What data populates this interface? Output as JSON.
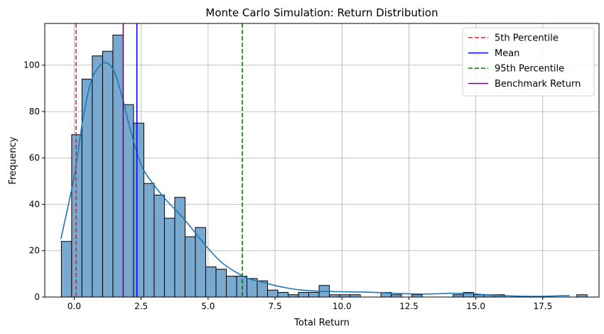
{
  "chart_data": {
    "type": "bar",
    "title": "Monte Carlo Simulation: Return Distribution",
    "xlabel": "Total Return",
    "ylabel": "Frequency",
    "xlim": [
      -1.1,
      19.6
    ],
    "ylim": [
      0,
      118
    ],
    "xticks": [
      0.0,
      2.5,
      5.0,
      7.5,
      10.0,
      12.5,
      15.0,
      17.5
    ],
    "xtick_labels": [
      "0.0",
      "2.5",
      "5.0",
      "7.5",
      "10.0",
      "12.5",
      "15.0",
      "17.5"
    ],
    "yticks": [
      0,
      20,
      40,
      60,
      80,
      100
    ],
    "ytick_labels": [
      "0",
      "20",
      "40",
      "60",
      "80",
      "100"
    ],
    "grid": true,
    "legend_position": "top-right",
    "bins": {
      "start": -0.48,
      "width": 0.385,
      "counts": [
        24,
        70,
        94,
        104,
        106,
        113,
        83,
        75,
        49,
        44,
        34,
        43,
        26,
        30,
        13,
        12,
        9,
        9,
        8,
        7,
        3,
        2,
        1,
        2,
        2,
        5,
        1,
        1,
        1,
        0,
        0,
        2,
        1,
        0,
        1,
        0,
        0,
        0,
        1,
        2,
        1,
        1,
        1,
        0,
        0,
        0,
        0,
        0,
        0,
        0,
        1
      ]
    },
    "kde": {
      "x": [
        -0.5,
        0,
        0.3,
        0.6,
        0.9,
        1.2,
        1.5,
        1.8,
        2.1,
        2.5,
        3,
        3.5,
        4,
        4.5,
        5,
        5.5,
        6,
        6.5,
        7,
        7.5,
        8,
        8.5,
        9,
        9.5,
        10,
        10.5,
        11,
        11.5,
        12,
        12.5,
        13,
        13.5,
        14,
        14.5,
        15,
        15.5,
        16,
        16.5,
        17,
        17.5,
        18,
        18.5
      ],
      "y": [
        25,
        52,
        75,
        92,
        99,
        101,
        97,
        86,
        72,
        57,
        48,
        41,
        35,
        28,
        21,
        15,
        11,
        8,
        6.5,
        5,
        3.8,
        3,
        2.6,
        2.4,
        2.3,
        2.2,
        2.1,
        1.9,
        1.6,
        1.4,
        1.3,
        1.4,
        1.6,
        1.6,
        1.3,
        0.9,
        0.6,
        0.4,
        0.3,
        0.3,
        0.5,
        0.6
      ]
    },
    "lines": [
      {
        "name": "5th Percentile",
        "x": 0.07,
        "color": "#d62728",
        "dash": true
      },
      {
        "name": "Mean",
        "x": 2.34,
        "color": "#0000ff",
        "dash": false
      },
      {
        "name": "95th Percentile",
        "x": 6.28,
        "color": "#008000",
        "dash": true
      },
      {
        "name": "Benchmark Return",
        "x": 1.83,
        "color": "#800080",
        "dash": false
      }
    ],
    "bar_color": "#7aa9cf",
    "kde_color": "#1f77b4"
  }
}
